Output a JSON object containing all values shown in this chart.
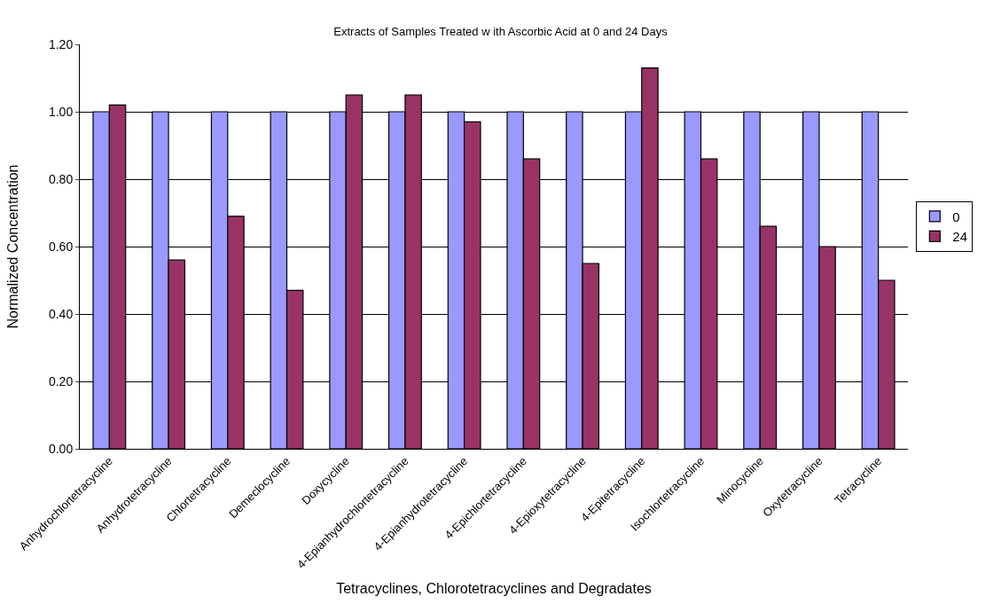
{
  "chart_data": {
    "type": "bar",
    "title": "Extracts of Samples Treated w ith Ascorbic Acid at 0 and 24 Days",
    "xlabel": "Tetracyclines, Chlorotetracyclines and Degradates",
    "ylabel": "Normalized Concentration",
    "categories": [
      "Anhydrochlortetracycline",
      "Anhydrotetracycline",
      "Chlortetracycline",
      "Demeclocycline",
      "Doxycycline",
      "4-Epianhydrochlortetracycline",
      "4-Epianhydrotetracycline",
      "4-Epichlortetracycline",
      "4-Epioxytetracycline",
      "4-Epitetracycline",
      "Isochlortetracycline",
      "Minocycline",
      "Oxytetracycline",
      "Tetracycline"
    ],
    "series": [
      {
        "name": "0",
        "color": "#9999ff",
        "values": [
          1.0,
          1.0,
          1.0,
          1.0,
          1.0,
          1.0,
          1.0,
          1.0,
          1.0,
          1.0,
          1.0,
          1.0,
          1.0,
          1.0
        ]
      },
      {
        "name": "24",
        "color": "#993366",
        "values": [
          1.02,
          0.56,
          0.69,
          0.47,
          1.05,
          1.05,
          0.97,
          0.86,
          0.55,
          1.13,
          0.86,
          0.66,
          0.6,
          0.5
        ]
      }
    ],
    "ylim": [
      0,
      1.2
    ],
    "yticks": [
      {
        "value": 0,
        "label": "0.00"
      },
      {
        "value": 0.2,
        "label": "0.20"
      },
      {
        "value": 0.4,
        "label": "0.40"
      },
      {
        "value": 0.6,
        "label": "0.60"
      },
      {
        "value": 0.8,
        "label": "0.80"
      },
      {
        "value": 1.0,
        "label": "1.00"
      },
      {
        "value": 1.2,
        "label": "1.20"
      }
    ],
    "grid": "y",
    "legend": "right"
  }
}
